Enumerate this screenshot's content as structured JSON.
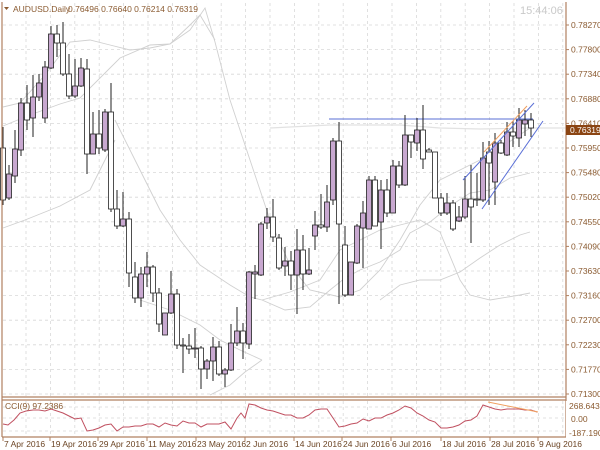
{
  "header": {
    "symbol_title": "AUDUSD.Daily",
    "ohlc_values": "0.76496 0.76640 0.76214 0.76319",
    "clock": "15:44:06"
  },
  "colors": {
    "axis": "#b08060",
    "grid": "#d8d8d8",
    "bull_body": "#c8a8d0",
    "bear_body": "#ffffff",
    "candle_outline": "#222222",
    "bands": "#d0d0d0",
    "trendline_blue": "#5a6fd6",
    "trendline_orange": "#f0a060",
    "current_price_bg": "#8b4513",
    "cci_line": "#c05060",
    "cci_trend": "#f0a060"
  },
  "price_axis": {
    "labels": [
      "0.78270",
      "0.77800",
      "0.77340",
      "0.76880",
      "0.76410",
      "0.75950",
      "0.75480",
      "0.75020",
      "0.74550",
      "0.74090",
      "0.73630",
      "0.73160",
      "0.72700",
      "0.72230",
      "0.71770",
      "0.71300"
    ],
    "current_price": "0.76319"
  },
  "cci_panel": {
    "label": "CCI(9) 97.2386",
    "axis_labels": [
      "268.6439",
      "0.00",
      "-187.1907"
    ]
  },
  "time_axis": {
    "labels": [
      "7 Apr 2016",
      "19 Apr 2016",
      "29 Apr 2016",
      "11 May 2016",
      "23 May 2016",
      "2 Jun 2016",
      "14 Jun 2016",
      "24 Jun 2016",
      "6 Jul 2016",
      "18 Jul 2016",
      "28 Jul 2016",
      "9 Aug 2016"
    ]
  },
  "chart_data": {
    "type": "candlestick",
    "title": "AUDUSD.Daily",
    "ylim": [
      0.713,
      0.7873
    ],
    "grid": true,
    "legend": "none",
    "last_ohlc": {
      "open": 0.76496,
      "high": 0.7664,
      "low": 0.76214,
      "close": 0.76319
    },
    "x_tick_labels": [
      "7 Apr 2016",
      "19 Apr 2016",
      "29 Apr 2016",
      "11 May 2016",
      "23 May 2016",
      "2 Jun 2016",
      "14 Jun 2016",
      "24 Jun 2016",
      "6 Jul 2016",
      "18 Jul 2016",
      "28 Jul 2016",
      "9 Aug 2016"
    ],
    "y_tick_labels": [
      "0.78270",
      "0.77800",
      "0.77340",
      "0.76880",
      "0.76410",
      "0.75950",
      "0.75480",
      "0.75020",
      "0.74550",
      "0.74090",
      "0.73630",
      "0.73160",
      "0.72700",
      "0.72230",
      "0.71770",
      "0.71300"
    ],
    "candles_px_note": "each candle: [x, open_y, high_y, low_y, close_y] in chart pixel coords",
    "candles": [
      [
        3,
        148,
        127,
        205,
        200
      ],
      [
        9,
        198,
        165,
        200,
        174
      ],
      [
        15,
        176,
        130,
        183,
        149
      ],
      [
        21,
        150,
        98,
        156,
        103
      ],
      [
        27,
        103,
        85,
        130,
        120
      ],
      [
        33,
        118,
        75,
        137,
        97
      ],
      [
        39,
        97,
        74,
        101,
        83
      ],
      [
        45,
        118,
        61,
        123,
        67
      ],
      [
        51,
        68,
        26,
        69,
        34
      ],
      [
        57,
        34,
        25,
        57,
        43
      ],
      [
        63,
        43,
        22,
        76,
        74
      ],
      [
        69,
        74,
        54,
        99,
        96
      ],
      [
        75,
        96,
        59,
        98,
        86
      ],
      [
        81,
        86,
        58,
        87,
        68
      ],
      [
        87,
        69,
        59,
        174,
        154
      ],
      [
        93,
        154,
        112,
        154,
        134
      ],
      [
        99,
        134,
        110,
        154,
        148
      ],
      [
        105,
        150,
        109,
        152,
        112
      ],
      [
        111,
        112,
        83,
        212,
        209
      ],
      [
        117,
        209,
        190,
        229,
        226
      ],
      [
        123,
        226,
        192,
        227,
        219
      ],
      [
        129,
        219,
        212,
        287,
        273
      ],
      [
        135,
        277,
        262,
        303,
        298
      ],
      [
        141,
        298,
        267,
        307,
        274
      ],
      [
        147,
        274,
        252,
        287,
        267
      ],
      [
        153,
        267,
        265,
        302,
        293
      ],
      [
        159,
        293,
        288,
        332,
        324
      ],
      [
        165,
        335,
        313,
        335,
        313
      ],
      [
        171,
        313,
        271,
        314,
        294
      ],
      [
        177,
        294,
        289,
        349,
        345
      ],
      [
        183,
        345,
        338,
        373,
        346
      ],
      [
        189,
        346,
        334,
        354,
        349
      ],
      [
        195,
        349,
        328,
        358,
        348
      ],
      [
        201,
        348,
        346,
        389,
        369
      ],
      [
        207,
        369,
        359,
        379,
        361
      ],
      [
        213,
        361,
        337,
        381,
        347
      ],
      [
        219,
        347,
        341,
        376,
        374
      ],
      [
        225,
        374,
        368,
        387,
        370
      ],
      [
        231,
        370,
        324,
        371,
        343
      ],
      [
        237,
        343,
        307,
        346,
        331
      ],
      [
        243,
        331,
        323,
        359,
        343
      ],
      [
        249,
        344,
        271,
        349,
        272
      ],
      [
        255,
        274,
        265,
        299,
        272
      ],
      [
        261,
        275,
        222,
        276,
        224
      ],
      [
        267,
        223,
        208,
        229,
        217
      ],
      [
        273,
        217,
        199,
        242,
        237
      ],
      [
        279,
        238,
        234,
        270,
        268
      ],
      [
        285,
        266,
        247,
        276,
        261
      ],
      [
        291,
        261,
        251,
        290,
        275
      ],
      [
        297,
        275,
        229,
        314,
        250
      ],
      [
        303,
        250,
        235,
        290,
        274
      ],
      [
        309,
        274,
        248,
        275,
        270
      ],
      [
        315,
        236,
        211,
        250,
        225
      ],
      [
        321,
        225,
        194,
        229,
        227
      ],
      [
        327,
        227,
        185,
        232,
        202
      ],
      [
        333,
        200,
        138,
        205,
        141
      ],
      [
        339,
        141,
        122,
        304,
        224
      ],
      [
        345,
        245,
        226,
        297,
        295
      ],
      [
        351,
        295,
        262,
        295,
        262
      ],
      [
        357,
        263,
        224,
        264,
        226
      ],
      [
        363,
        228,
        201,
        268,
        213
      ],
      [
        369,
        229,
        176,
        229,
        180
      ],
      [
        375,
        180,
        176,
        226,
        226
      ],
      [
        381,
        222,
        180,
        249,
        190
      ],
      [
        387,
        190,
        179,
        217,
        213
      ],
      [
        393,
        213,
        160,
        212,
        166
      ],
      [
        399,
        166,
        161,
        188,
        185
      ],
      [
        405,
        185,
        115,
        186,
        135
      ],
      [
        411,
        135,
        135,
        158,
        142
      ],
      [
        417,
        143,
        118,
        151,
        130
      ],
      [
        423,
        130,
        105,
        169,
        159
      ],
      [
        429,
        150,
        148,
        152,
        152
      ],
      [
        435,
        152,
        152,
        198,
        198
      ],
      [
        441,
        198,
        193,
        216,
        213
      ],
      [
        447,
        213,
        193,
        215,
        203
      ],
      [
        453,
        203,
        200,
        231,
        229
      ],
      [
        459,
        221,
        206,
        222,
        217
      ],
      [
        465,
        217,
        176,
        219,
        199
      ],
      [
        471,
        199,
        165,
        243,
        207
      ],
      [
        477,
        199,
        173,
        206,
        200
      ],
      [
        483,
        200,
        142,
        202,
        158
      ],
      [
        489,
        152,
        141,
        205,
        163
      ],
      [
        495,
        182,
        133,
        205,
        143
      ],
      [
        501,
        143,
        140,
        154,
        153
      ],
      [
        507,
        155,
        122,
        156,
        132
      ],
      [
        513,
        132,
        121,
        147,
        136
      ],
      [
        519,
        138,
        108,
        147,
        120
      ],
      [
        525,
        124,
        110,
        136,
        120
      ],
      [
        531,
        120,
        113,
        137,
        128
      ]
    ],
    "cci": {
      "label": "CCI(9)",
      "last_value": 97.2386,
      "axis_max": 268.6439,
      "axis_min": -187.1907
    }
  }
}
